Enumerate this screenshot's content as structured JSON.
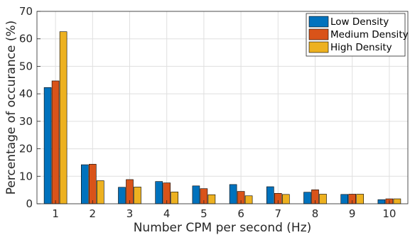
{
  "chart_data": {
    "type": "bar",
    "title": "",
    "xlabel": "Number CPM per second (Hz)",
    "ylabel": "Percentage of occurance (%)",
    "categories": [
      "1",
      "2",
      "3",
      "4",
      "5",
      "6",
      "7",
      "8",
      "9",
      "10"
    ],
    "ylim": [
      0,
      70
    ],
    "yticks": [
      0,
      10,
      20,
      30,
      40,
      50,
      60,
      70
    ],
    "grid": true,
    "legend_position": "top-right",
    "series": [
      {
        "name": "Low Density",
        "color": "#0072BD",
        "values": [
          42.3,
          14.2,
          6.0,
          8.1,
          6.5,
          7.0,
          6.2,
          4.2,
          3.4,
          1.5
        ]
      },
      {
        "name": "Medium Density",
        "color": "#D95319",
        "values": [
          44.7,
          14.4,
          8.8,
          7.6,
          5.5,
          4.5,
          3.8,
          5.1,
          3.5,
          1.8
        ]
      },
      {
        "name": "High Density",
        "color": "#EDB120",
        "values": [
          62.6,
          8.4,
          6.1,
          4.3,
          3.3,
          2.9,
          3.4,
          3.5,
          3.5,
          1.8
        ]
      }
    ]
  }
}
